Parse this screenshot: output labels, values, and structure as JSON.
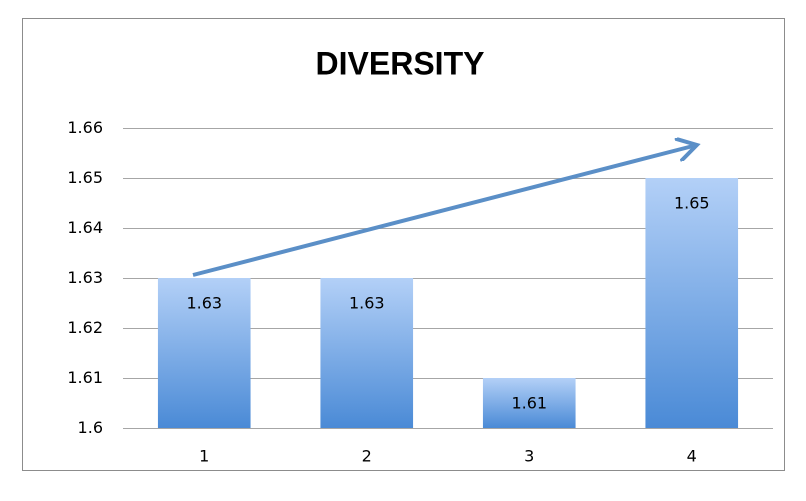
{
  "chart_data": {
    "type": "bar",
    "title": "DIVERSITY",
    "categories": [
      "1",
      "2",
      "3",
      "4"
    ],
    "values": [
      1.63,
      1.63,
      1.61,
      1.65
    ],
    "color": "#4a8ad6",
    "ylim": [
      1.6,
      1.66
    ],
    "yticks": [
      1.6,
      1.61,
      1.62,
      1.63,
      1.64,
      1.65,
      1.66
    ],
    "grid": true
  }
}
